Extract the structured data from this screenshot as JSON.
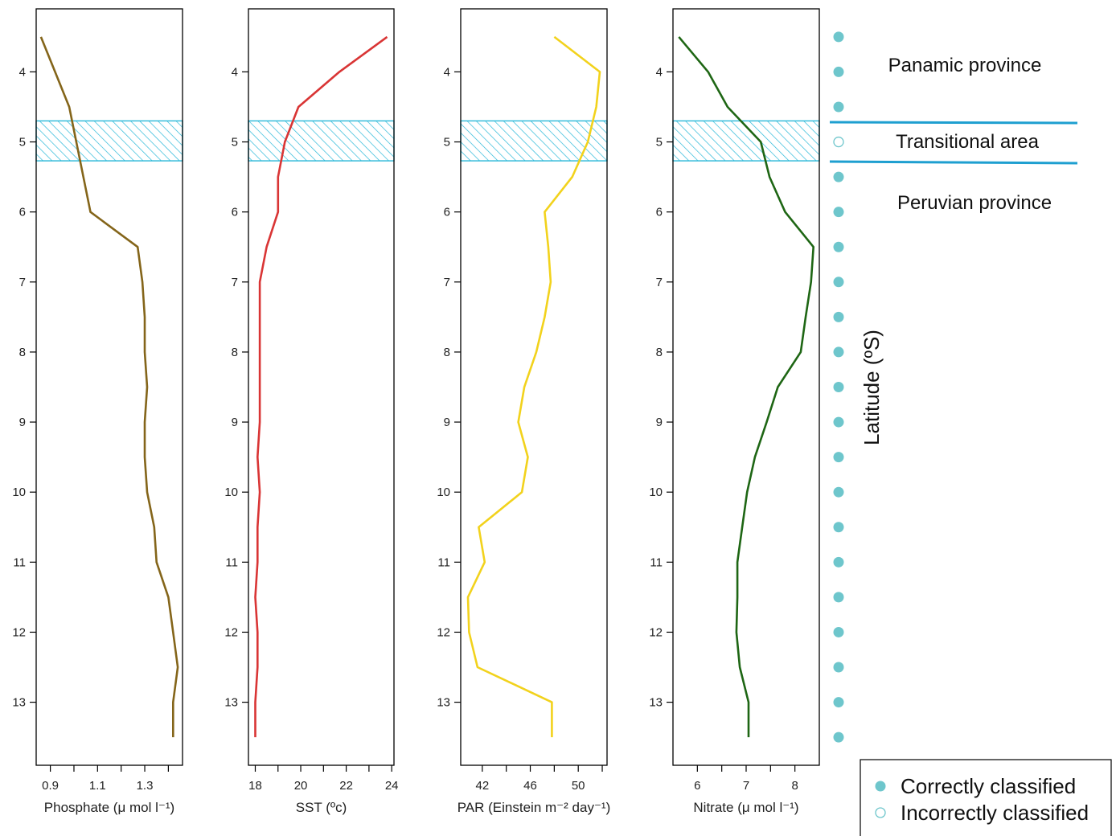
{
  "chart_data": {
    "type": "line",
    "orientation": "profile",
    "shared_y": {
      "label": "Latitude (ºS)",
      "range": [
        13.9,
        3.1
      ],
      "ticks": [
        4,
        5,
        6,
        7,
        8,
        9,
        10,
        11,
        12,
        13
      ],
      "latitudes": [
        3.5,
        4,
        4.5,
        5,
        5.5,
        6,
        6.5,
        7,
        7.5,
        8,
        8.5,
        9,
        9.5,
        10,
        10.5,
        11,
        11.5,
        12,
        12.5,
        13,
        13.5
      ]
    },
    "transition_band": [
      4.7,
      5.27
    ],
    "colors": {
      "band_hatch": "#29b8d8",
      "divider": "#1e9fd0",
      "dot": "#6ec6cc"
    },
    "panels": [
      {
        "name": "phosphate",
        "xlabel": "Phosphate (μ mol l⁻¹)",
        "xrange": [
          0.84,
          1.46
        ],
        "xticks": [
          0.9,
          1.1,
          1.3
        ],
        "xminor": [
          1.0,
          1.2,
          1.4
        ],
        "color": "#84651a",
        "values": [
          0.86,
          0.92,
          0.98,
          1.01,
          1.04,
          1.07,
          1.27,
          1.29,
          1.3,
          1.3,
          1.31,
          1.3,
          1.3,
          1.31,
          1.34,
          1.35,
          1.4,
          1.42,
          1.44,
          1.42,
          1.42
        ],
        "band": true
      },
      {
        "name": "sst",
        "xlabel": "SST (ºc)",
        "xrange": [
          17.7,
          24.1
        ],
        "xticks": [
          18,
          20,
          22,
          24
        ],
        "xminor": [
          19,
          21,
          23
        ],
        "color": "#d93535",
        "values": [
          23.8,
          21.7,
          19.9,
          19.3,
          19.0,
          19.0,
          18.5,
          18.2,
          18.2,
          18.2,
          18.2,
          18.2,
          18.1,
          18.2,
          18.1,
          18.1,
          18.0,
          18.1,
          18.1,
          18.0,
          18.0
        ],
        "band": true
      },
      {
        "name": "par",
        "xlabel": "PAR (Einstein m⁻² day⁻¹)",
        "xrange": [
          40.2,
          52.4
        ],
        "xticks": [
          42,
          46,
          50
        ],
        "xminor": [
          44,
          48,
          52
        ],
        "color": "#f2d21c",
        "values": [
          48.0,
          51.8,
          51.5,
          50.8,
          49.5,
          47.2,
          47.5,
          47.7,
          47.2,
          46.5,
          45.5,
          45.0,
          45.8,
          45.3,
          41.7,
          42.2,
          40.8,
          40.9,
          41.6,
          47.8,
          47.8
        ],
        "band": true
      },
      {
        "name": "nitrate",
        "xlabel": "Nitrate (μ mol l⁻¹)",
        "xrange": [
          5.5,
          8.5
        ],
        "xticks": [
          6.0,
          7.0,
          8.0
        ],
        "xminor": [
          6.5,
          7.5
        ],
        "color": "#1e6614",
        "values": [
          5.62,
          6.22,
          6.62,
          7.3,
          7.48,
          7.8,
          8.38,
          8.33,
          8.22,
          8.12,
          7.65,
          7.42,
          7.18,
          7.02,
          6.92,
          6.82,
          6.82,
          6.8,
          6.87,
          7.05,
          7.05
        ],
        "band": true
      }
    ],
    "classification": {
      "correct": [
        3.5,
        4,
        4.5,
        5.5,
        6,
        6.5,
        7,
        7.5,
        8,
        8.5,
        9,
        9.5,
        10,
        10.5,
        11,
        11.5,
        12,
        12.5,
        13,
        13.5
      ],
      "incorrect": [
        5
      ]
    }
  },
  "provinces": {
    "panamic": "Panamic province",
    "transitional": "Transitional area",
    "peruvian": "Peruvian province"
  },
  "legend": {
    "correct": "Correctly classified",
    "incorrect": "Incorrectly classified"
  }
}
